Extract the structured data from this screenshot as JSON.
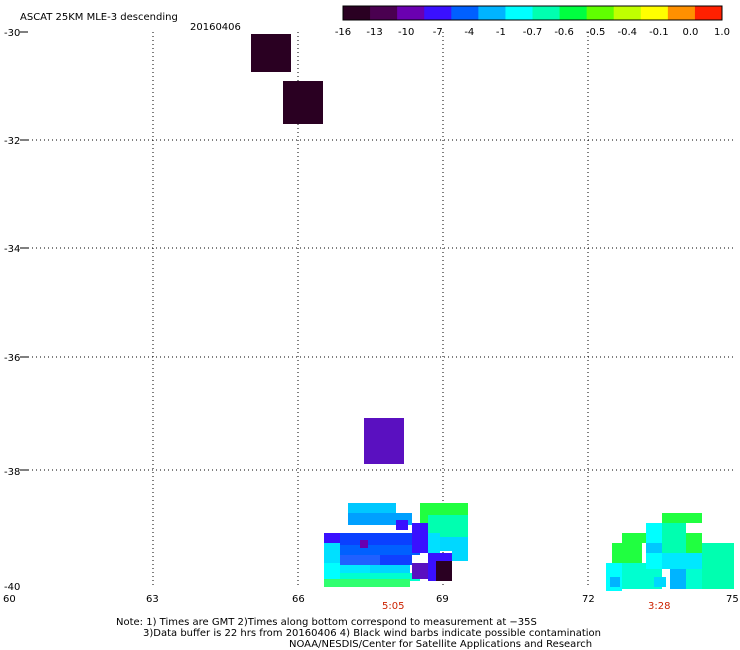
{
  "header": {
    "title": "ASCAT 25KM MLE-3 descending",
    "date": "20160406"
  },
  "colorbar": {
    "labels": [
      "-16",
      "-13",
      "-10",
      "-7",
      "-4",
      "-1",
      "-0.7",
      "-0.6",
      "-0.5",
      "-0.4",
      "-0.1",
      "0.0",
      "1.0"
    ],
    "colors": [
      "#2a0022",
      "#4a0050",
      "#6a00b0",
      "#3a10ff",
      "#0060ff",
      "#00b4ff",
      "#00ffff",
      "#00ffb0",
      "#00ff40",
      "#60ff00",
      "#c0ff00",
      "#ffff00",
      "#ff9000",
      "#ff2000"
    ]
  },
  "axes": {
    "lat_labels": [
      "-30",
      "-32",
      "-34",
      "-36",
      "-38",
      "-40"
    ],
    "lon_labels": [
      "60",
      "63",
      "66",
      "69",
      "72",
      "75"
    ]
  },
  "pass_times": [
    "5:05",
    "3:28"
  ],
  "notes": {
    "line1": "Note: 1) Times are GMT 2)Times along bottom correspond to measurement at −35S",
    "line2": "3)Data buffer is 22 hrs from 20160406 4) Black wind barbs indicate possible contamination",
    "line3": "NOAA/NESDIS/Center for Satellite Applications and Research"
  }
}
